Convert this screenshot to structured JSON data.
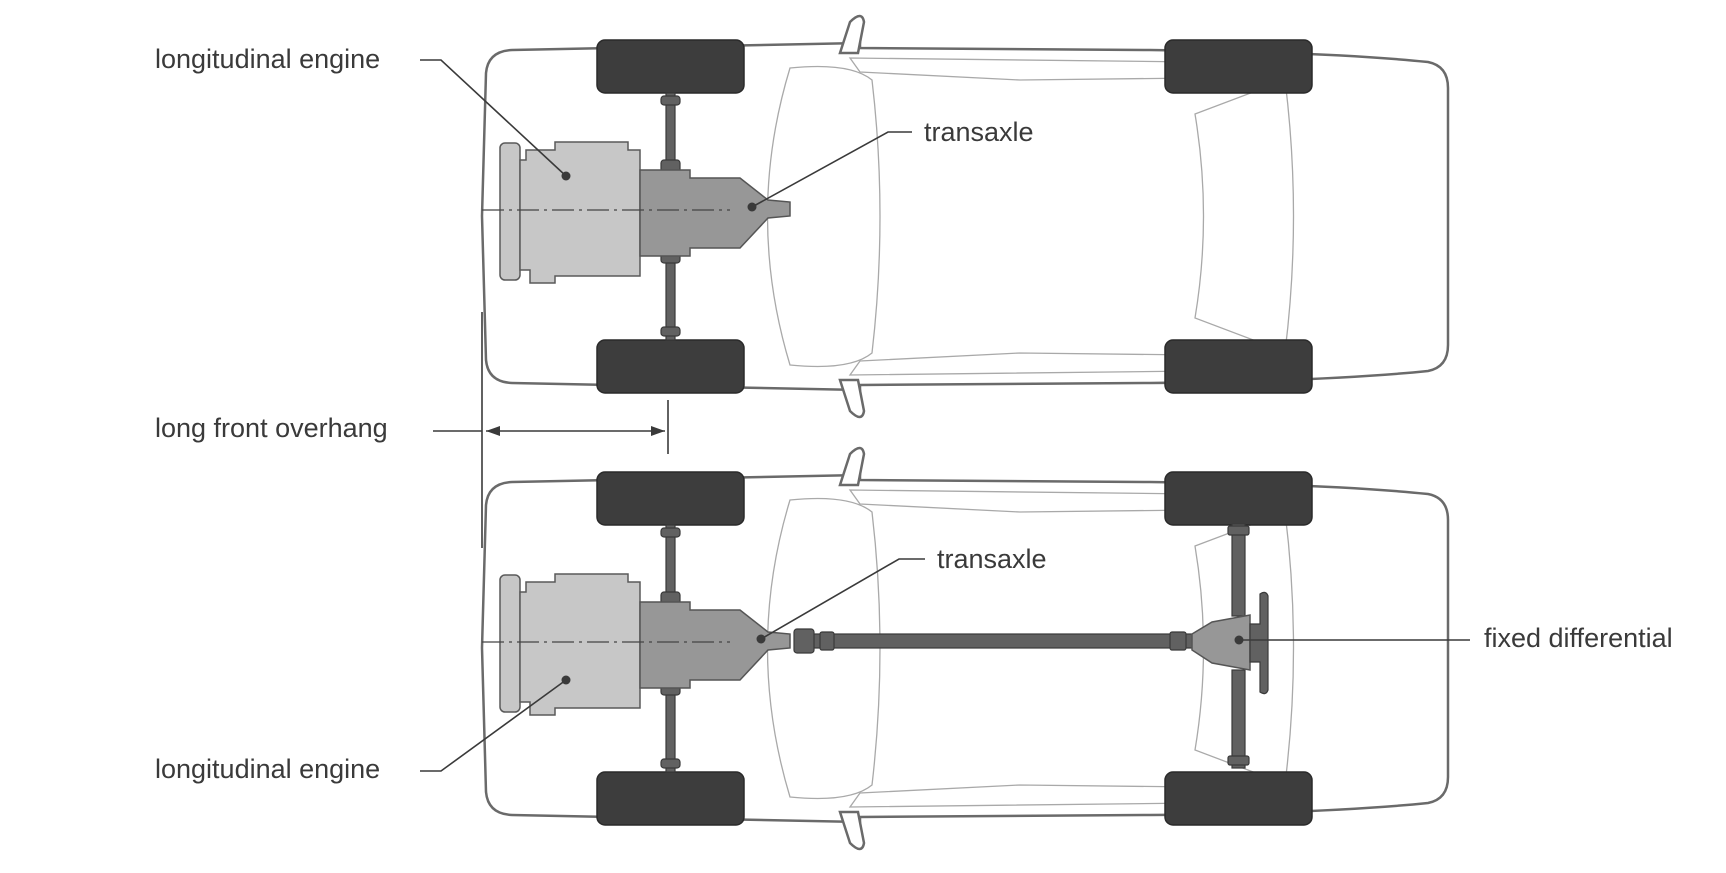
{
  "labels": {
    "top_engine": "longitudinal engine",
    "top_transaxle": "transaxle",
    "overhang": "long front overhang",
    "bottom_transaxle": "transaxle",
    "bottom_differential": "fixed differential",
    "bottom_engine": "longitudinal engine"
  },
  "colors": {
    "text": "#3a3a3a",
    "body_outline": "#6a6a6a",
    "wheel": "#3d3d3d",
    "engine": "#c7c7c7",
    "transaxle": "#979797",
    "driveshaft": "#616161"
  }
}
